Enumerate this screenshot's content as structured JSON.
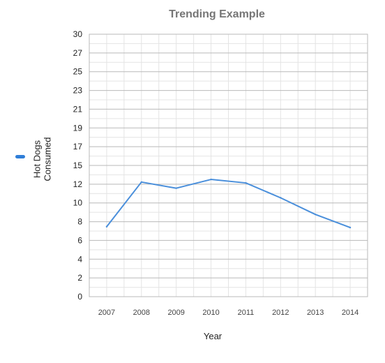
{
  "chart_data": {
    "type": "line",
    "title": "Trending Example",
    "xlabel": "Year",
    "ylabel": "",
    "categories": [
      "2007",
      "2008",
      "2009",
      "2010",
      "2011",
      "2012",
      "2013",
      "2014"
    ],
    "series": [
      {
        "name": "Hot Dogs Consumed",
        "values": [
          8,
          13.1,
          12.4,
          13.4,
          13.0,
          11.3,
          9.4,
          7.9
        ]
      }
    ],
    "ylim": [
      0,
      30
    ],
    "ytick_labels": [
      "0",
      "2",
      "4",
      "6",
      "8",
      "10",
      "12",
      "15",
      "17",
      "19",
      "21",
      "23",
      "25",
      "27",
      "30"
    ],
    "grid": true,
    "legend_position": "left",
    "colors": {
      "line": "#4a8fdb",
      "legend": "#2f7ed8",
      "grid_major": "#b9b9b9",
      "grid_minor": "#e4e4e4"
    }
  }
}
